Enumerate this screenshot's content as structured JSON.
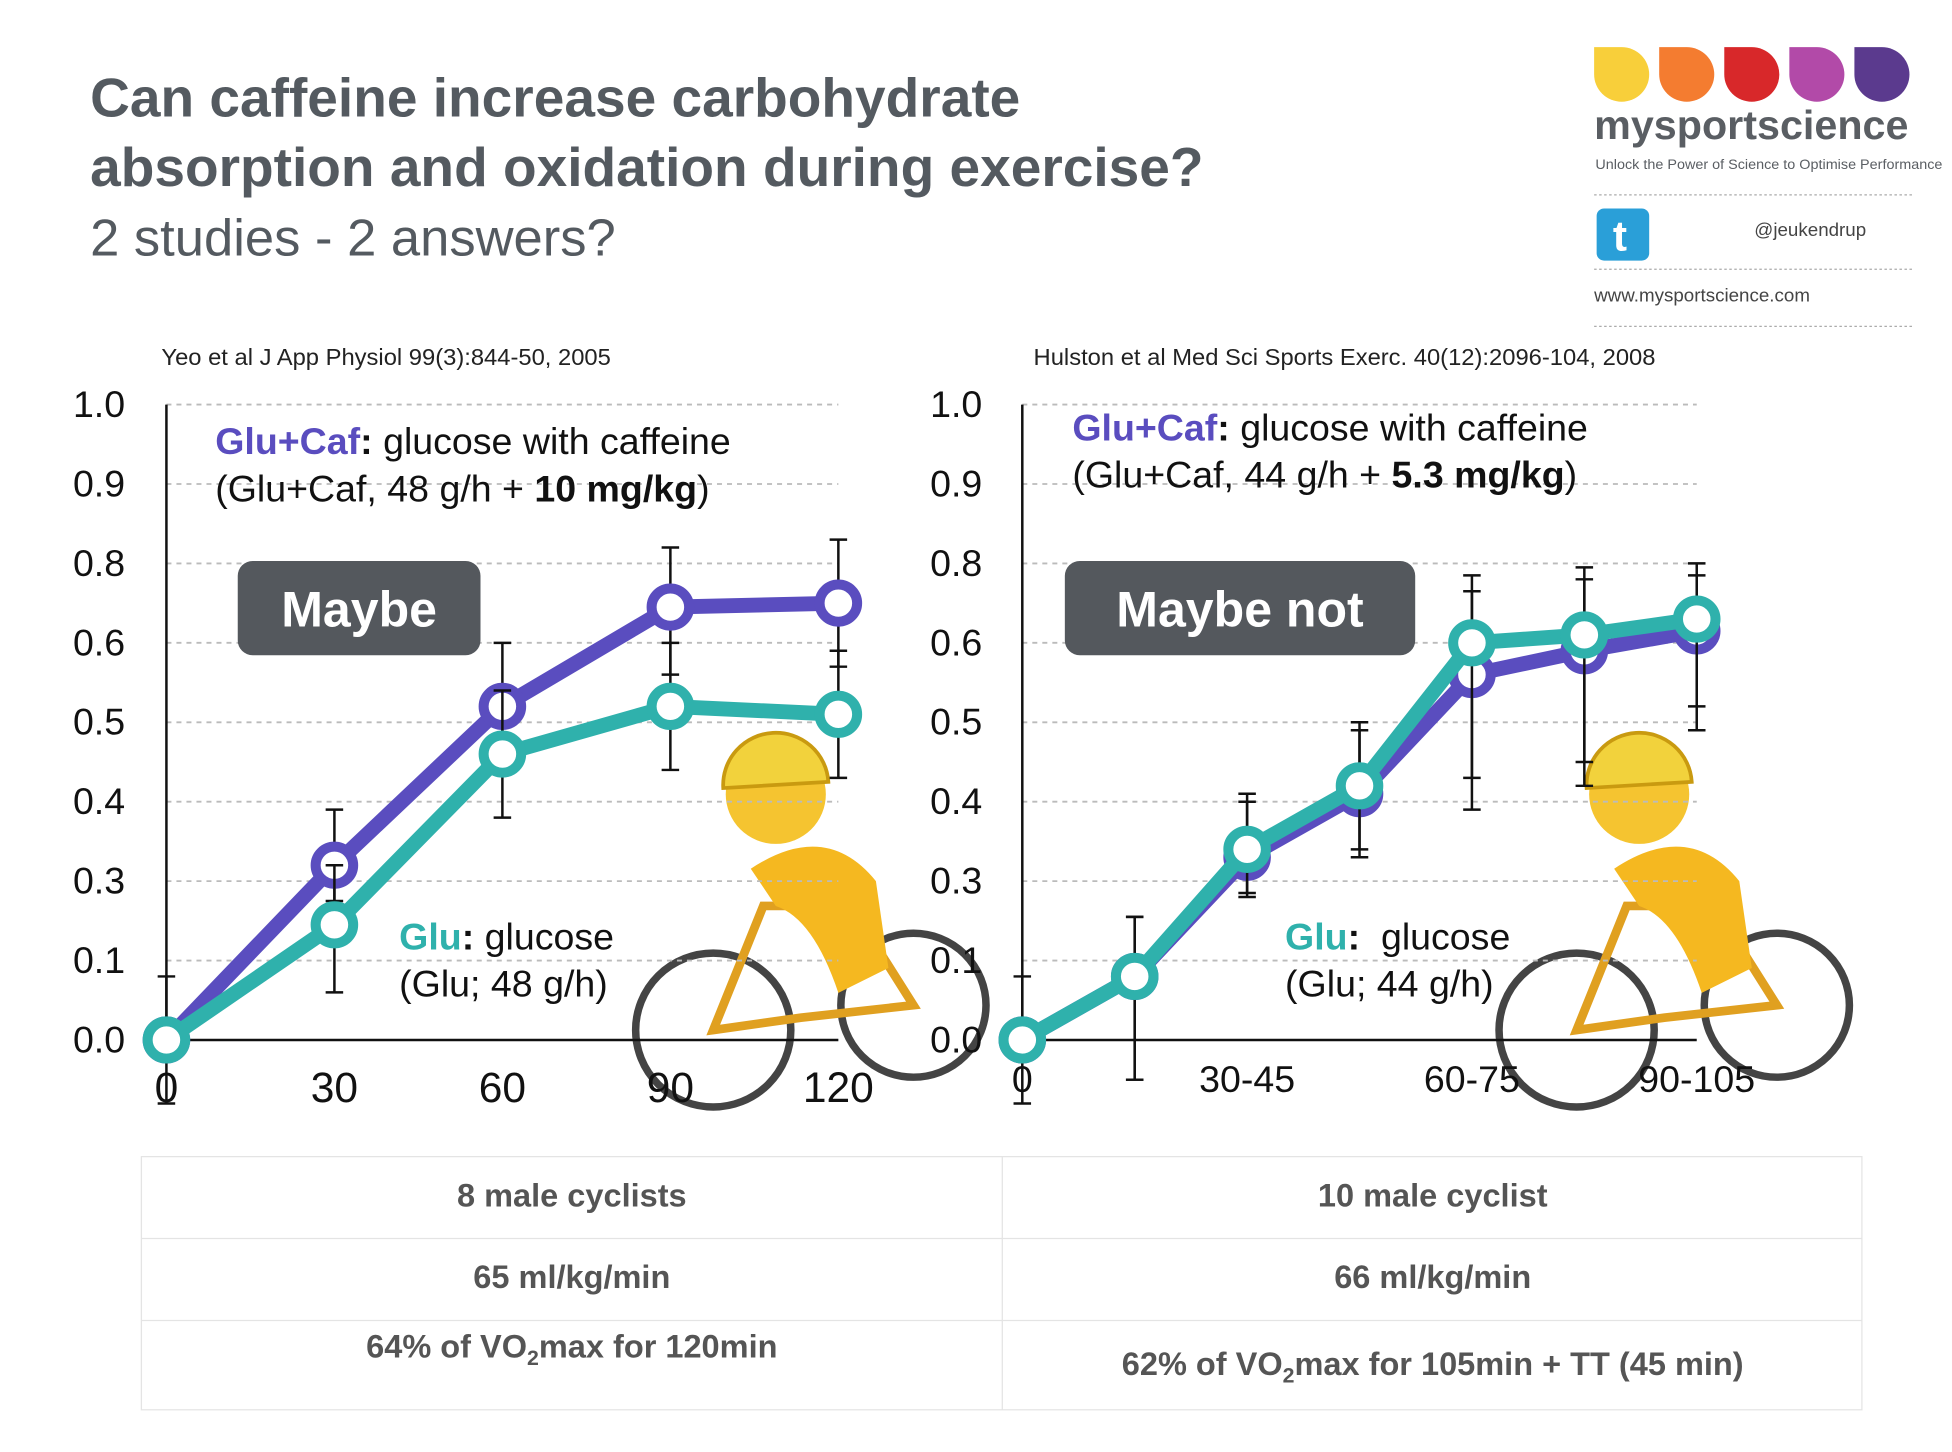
{
  "header": {
    "title_lines": [
      "Can caffeine increase carbohydrate",
      "absorption and oxidation during exercise?"
    ],
    "subtitle": "2 studies - 2 answers?",
    "logo": "mysportscience",
    "tagline": "Unlock the Power of Science to Optimise Performance",
    "twitter": "@jeukendrup",
    "url": "www.mysportscience.com"
  },
  "chart_data": [
    {
      "type": "line",
      "citation": "Yeo et al J App Physiol 99(3):844-50, 2005",
      "verdict": "Maybe",
      "x": [
        0,
        30,
        60,
        90,
        120
      ],
      "xlim": [
        0,
        120
      ],
      "xticks": [
        0,
        30,
        60,
        90,
        120
      ],
      "ylim": [
        0,
        1
      ],
      "yticks": [
        {
          "value": 0,
          "label": "0.0"
        },
        0.1,
        0.3,
        0.4,
        0.5,
        0.6,
        0.8,
        0.9,
        {
          "value": 1,
          "label": "1.0"
        }
      ],
      "grid": true,
      "series": [
        {
          "name": "Glu+Caf",
          "color": "#5a4dbf",
          "values": [
            0,
            0.32,
            0.52,
            0.69,
            0.7
          ],
          "errors": [
            0,
            0.07,
            0.08,
            0.13,
            0.13
          ],
          "separator": ":",
          "description": " glucose with caffeine",
          "details": [
            {
              "text": "(Glu+Caf, 48 g/h + "
            },
            {
              "text": "10 mg/kg",
              "bold": true
            },
            {
              "text": ")"
            }
          ]
        },
        {
          "name": "Glu",
          "color": "#2fb1ac",
          "values": [
            0,
            0.19,
            0.46,
            0.52,
            0.51
          ],
          "errors": [
            0.08,
            0.13,
            0.08,
            0.08,
            0.08
          ],
          "separator": ":",
          "description": " glucose",
          "details": [
            {
              "text": "(Glu; 48 g/h)"
            }
          ]
        }
      ]
    },
    {
      "type": "line",
      "citation": "Hulston et al Med Sci Sports Exerc. 40(12):2096-104, 2008",
      "verdict": "Maybe not",
      "categories": [
        "0",
        null,
        "30-45",
        null,
        "60-75",
        null,
        "90-105"
      ],
      "ylim": [
        0,
        1
      ],
      "yticks": [
        {
          "value": 0,
          "label": "0.0"
        },
        0.1,
        0.3,
        0.4,
        0.5,
        0.6,
        0.8,
        0.9,
        {
          "value": 1,
          "label": "1.0"
        }
      ],
      "grid": true,
      "series": [
        {
          "name": "Glu+Caf",
          "color": "#5a4dbf",
          "values": [
            0,
            0.08,
            0.33,
            0.41,
            0.56,
            0.59,
            0.63
          ],
          "errors": [
            0,
            0.13,
            0.07,
            0.08,
            0.17,
            0.17,
            0.14
          ],
          "separator": ":",
          "description": " glucose with caffeine",
          "details": [
            {
              "text": "(Glu+Caf, 44 g/h + "
            },
            {
              "text": "5.3 mg/kg",
              "bold": true
            },
            {
              "text": ")"
            }
          ]
        },
        {
          "name": "Glu",
          "color": "#2fb1ac",
          "values": [
            0,
            0.08,
            0.34,
            0.42,
            0.6,
            0.62,
            0.66
          ],
          "errors": [
            0.08,
            0.13,
            0.07,
            0.08,
            0.17,
            0.17,
            0.14
          ],
          "separator": ":",
          "description": "  glucose",
          "details": [
            {
              "text": "(Glu; 44 g/h)"
            }
          ]
        }
      ]
    }
  ],
  "table": {
    "rows": [
      [
        "8 male cyclists",
        "10 male cyclist"
      ],
      [
        "65 ml/kg/min",
        "66 ml/kg/min"
      ],
      [
        {
          "pre": "64% of VO",
          "sub": "2",
          "post": "max for 120min"
        },
        {
          "pre": "62% of VO",
          "sub": "2",
          "post": "max for 105min + TT (45 min)"
        }
      ]
    ]
  }
}
